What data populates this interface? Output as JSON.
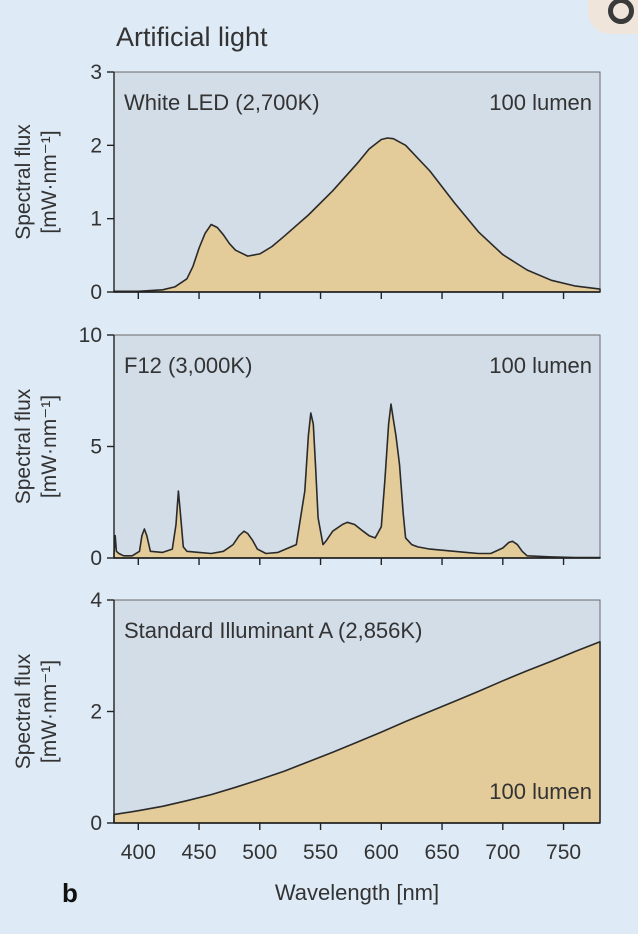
{
  "figure": {
    "title": "Artificial light",
    "panel_letter": "b"
  },
  "chart_data": [
    {
      "type": "area",
      "label": "White LED (2,700K)",
      "annotation": "100 lumen",
      "annotation_position": "top-right",
      "ylabel_line1": "Spectral flux",
      "ylabel_line2": "[mW·nm⁻¹]",
      "xlabel": "",
      "xlim": [
        380,
        780
      ],
      "ylim": [
        0,
        3
      ],
      "yticks": [
        0,
        1,
        2,
        3
      ],
      "xticks": [
        400,
        450,
        500,
        550,
        600,
        650,
        700,
        750
      ],
      "x": [
        380,
        400,
        420,
        430,
        440,
        445,
        450,
        455,
        460,
        465,
        470,
        475,
        480,
        490,
        500,
        510,
        520,
        540,
        560,
        580,
        590,
        600,
        605,
        610,
        620,
        640,
        660,
        680,
        700,
        720,
        740,
        760,
        780
      ],
      "y": [
        0.01,
        0.01,
        0.03,
        0.07,
        0.18,
        0.35,
        0.6,
        0.8,
        0.92,
        0.88,
        0.78,
        0.66,
        0.57,
        0.49,
        0.52,
        0.62,
        0.76,
        1.05,
        1.38,
        1.75,
        1.95,
        2.08,
        2.1,
        2.09,
        2.0,
        1.65,
        1.22,
        0.82,
        0.51,
        0.3,
        0.16,
        0.08,
        0.04
      ]
    },
    {
      "type": "area",
      "label": "F12 (3,000K)",
      "annotation": "100 lumen",
      "annotation_position": "top-right",
      "ylabel_line1": "Spectral flux",
      "ylabel_line2": "[mW·nm⁻¹]",
      "xlabel": "",
      "xlim": [
        380,
        780
      ],
      "ylim": [
        0,
        10
      ],
      "yticks": [
        0,
        5,
        10
      ],
      "xticks": [
        400,
        450,
        500,
        550,
        600,
        650,
        700,
        750
      ],
      "x": [
        380,
        381,
        382,
        384,
        388,
        395,
        401,
        403,
        405,
        407,
        410,
        420,
        428,
        431,
        433,
        435,
        437,
        440,
        450,
        460,
        470,
        478,
        483,
        487,
        490,
        494,
        498,
        505,
        515,
        530,
        537,
        540,
        542,
        544,
        546,
        548,
        552,
        555,
        560,
        568,
        572,
        578,
        585,
        590,
        595,
        600,
        603,
        606,
        608,
        610,
        612,
        615,
        618,
        620,
        625,
        630,
        640,
        650,
        660,
        670,
        680,
        690,
        700,
        705,
        708,
        712,
        716,
        720,
        740,
        760,
        780
      ],
      "y": [
        0.2,
        1.0,
        0.3,
        0.2,
        0.1,
        0.1,
        0.3,
        1.0,
        1.3,
        1.0,
        0.3,
        0.25,
        0.4,
        1.5,
        3.0,
        1.8,
        0.5,
        0.3,
        0.25,
        0.2,
        0.3,
        0.6,
        1.0,
        1.2,
        1.1,
        0.8,
        0.4,
        0.2,
        0.25,
        0.6,
        3.0,
        5.5,
        6.5,
        6.0,
        4.0,
        1.8,
        0.6,
        0.8,
        1.2,
        1.5,
        1.6,
        1.5,
        1.2,
        1.0,
        0.9,
        1.4,
        3.5,
        6.0,
        6.9,
        6.2,
        5.5,
        4.2,
        2.0,
        0.9,
        0.6,
        0.5,
        0.4,
        0.35,
        0.3,
        0.25,
        0.2,
        0.2,
        0.45,
        0.7,
        0.75,
        0.6,
        0.3,
        0.1,
        0.05,
        0.02,
        0.02
      ]
    },
    {
      "type": "area",
      "label": "Standard Illuminant A (2,856K)",
      "annotation": "100 lumen",
      "annotation_position": "bottom-right",
      "ylabel_line1": "Spectral flux",
      "ylabel_line2": "[mW·nm⁻¹]",
      "xlabel": "Wavelength [nm]",
      "xlim": [
        380,
        780
      ],
      "ylim": [
        0,
        4
      ],
      "yticks": [
        0,
        2,
        4
      ],
      "xticks": [
        400,
        450,
        500,
        550,
        600,
        650,
        700,
        750
      ],
      "x": [
        380,
        400,
        420,
        440,
        460,
        480,
        500,
        520,
        540,
        560,
        580,
        600,
        620,
        640,
        660,
        680,
        700,
        720,
        740,
        760,
        780
      ],
      "y": [
        0.15,
        0.22,
        0.3,
        0.4,
        0.51,
        0.64,
        0.78,
        0.93,
        1.1,
        1.27,
        1.45,
        1.63,
        1.82,
        2.0,
        2.18,
        2.36,
        2.55,
        2.73,
        2.9,
        3.08,
        3.25
      ]
    }
  ]
}
